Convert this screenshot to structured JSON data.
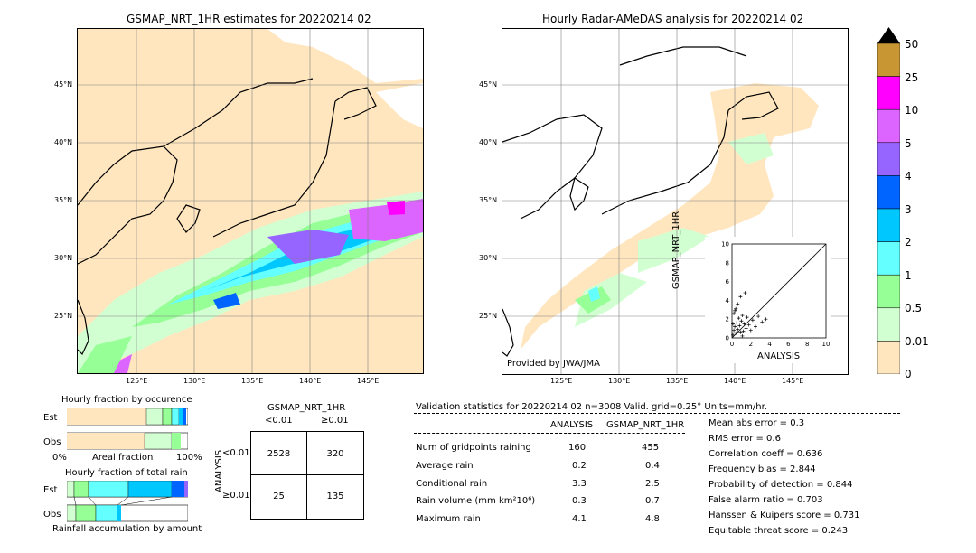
{
  "left_map": {
    "title": "GSMAP_NRT_1HR estimates for 20220214 02",
    "lat_ticks": [
      "45°N",
      "40°N",
      "35°N",
      "30°N",
      "25°N"
    ],
    "lon_ticks": [
      "125°E",
      "130°E",
      "135°E",
      "140°E",
      "145°E"
    ]
  },
  "right_map": {
    "title": "Hourly Radar-AMeDAS analysis for 20220214 02",
    "lat_ticks": [
      "45°N",
      "40°N",
      "35°N",
      "30°N",
      "25°N"
    ],
    "lon_ticks": [
      "125°E",
      "130°E",
      "135°E",
      "140°E",
      "145°E"
    ],
    "credit": "Provided by JWA/JMA"
  },
  "colorbar": {
    "labels": [
      "50",
      "25",
      "10",
      "5",
      "4",
      "3",
      "2",
      "1",
      "0.5",
      "0.01",
      "0"
    ],
    "colors": [
      "#c89632",
      "#ff00ff",
      "#dc64ff",
      "#9664ff",
      "#0064ff",
      "#00c8ff",
      "#64ffff",
      "#96ff96",
      "#d2ffd2",
      "#ffe6be"
    ]
  },
  "scatter": {
    "xlabel": "ANALYSIS",
    "ylabel": "GSMAP_NRT_1HR",
    "ticks": [
      "0",
      "2",
      "4",
      "6",
      "8",
      "10"
    ]
  },
  "occurrence": {
    "title": "Hourly fraction by occurence",
    "row_est": "Est",
    "row_obs": "Obs",
    "axis_left": "0%",
    "axis_mid": "Areal fraction",
    "axis_right": "100%"
  },
  "total_rain": {
    "title": "Hourly fraction of total rain",
    "row_est": "Est",
    "row_obs": "Obs",
    "footer": "Rainfall accumulation by amount"
  },
  "contingency": {
    "title": "GSMAP_NRT_1HR",
    "col_lt": "<0.01",
    "col_ge": "≥0.01",
    "side_label": "ANALYSIS",
    "row_lt": "<0.01",
    "row_ge": "≥0.01",
    "cells": [
      "2528",
      "320",
      "25",
      "135"
    ]
  },
  "validation": {
    "header": "Validation statistics for 20220214 02  n=3008 Valid. grid=0.25° Units=mm/hr.",
    "col_analysis": "ANALYSIS",
    "col_gsmap": "GSMAP_NRT_1HR",
    "rows": [
      {
        "label": "Num of gridpoints raining",
        "analysis": "160",
        "gsmap": "455"
      },
      {
        "label": "Average rain",
        "analysis": "0.2",
        "gsmap": "0.4"
      },
      {
        "label": "Conditional rain",
        "analysis": "3.3",
        "gsmap": "2.5"
      },
      {
        "label": "Rain volume (mm km²10⁶)",
        "analysis": "0.3",
        "gsmap": "0.7"
      },
      {
        "label": "Maximum rain",
        "analysis": "4.1",
        "gsmap": "4.8"
      }
    ],
    "scores": [
      "Mean abs error =    0.3",
      "RMS error =    0.6",
      "Correlation coeff =  0.636",
      "Frequency bias =  2.844",
      "Probability of detection =  0.844",
      "False alarm ratio =  0.703",
      "Hanssen & Kuipers score =  0.731",
      "Equitable threat score =  0.243"
    ]
  },
  "chart_data": {
    "type": "scatter",
    "xlabel": "ANALYSIS",
    "ylabel": "GSMAP_NRT_1HR",
    "xlim": [
      0,
      10
    ],
    "ylim": [
      0,
      10
    ],
    "points": [
      [
        0.1,
        0.3
      ],
      [
        0.2,
        0.8
      ],
      [
        0.3,
        1.2
      ],
      [
        0.4,
        0.5
      ],
      [
        0.5,
        1.6
      ],
      [
        0.6,
        0.9
      ],
      [
        0.7,
        2.1
      ],
      [
        0.8,
        1.3
      ],
      [
        0.9,
        0.6
      ],
      [
        1.0,
        1.8
      ],
      [
        1.1,
        2.4
      ],
      [
        1.2,
        0.7
      ],
      [
        1.3,
        1.5
      ],
      [
        1.5,
        1.0
      ],
      [
        1.6,
        2.2
      ],
      [
        1.8,
        1.4
      ],
      [
        2.0,
        0.8
      ],
      [
        2.2,
        1.9
      ],
      [
        2.5,
        1.2
      ],
      [
        2.8,
        2.3
      ],
      [
        3.2,
        1.7
      ],
      [
        3.6,
        2.0
      ],
      [
        0.2,
        2.6
      ],
      [
        0.4,
        3.1
      ],
      [
        0.6,
        3.6
      ],
      [
        0.9,
        4.4
      ],
      [
        1.4,
        4.8
      ],
      [
        0.3,
        2.9
      ],
      [
        1.1,
        0.2
      ],
      [
        0.1,
        1.5
      ]
    ]
  }
}
